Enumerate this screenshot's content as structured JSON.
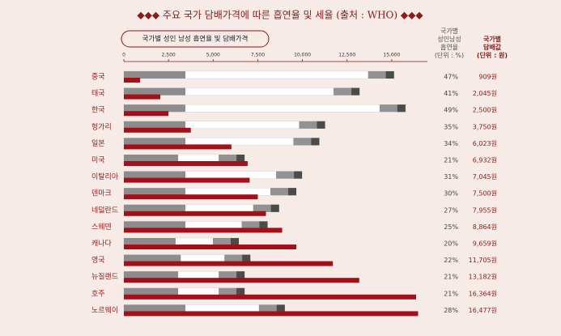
{
  "chart_data": {
    "type": "bar",
    "title": "◆◆◆ 주요 국가 담배가격에 따른 흡연율 및 세율 (출처 : WHO) ◆◆◆",
    "subtitle": "국가별 성인 남성 흡연율 및 담배가격",
    "categories": [
      "중국",
      "태국",
      "한국",
      "헝가리",
      "일본",
      "미국",
      "이탈리아",
      "덴마크",
      "네덜란드",
      "스웨덴",
      "캐나다",
      "영국",
      "뉴질랜드",
      "호주",
      "노르웨이"
    ],
    "series": [
      {
        "name": "국가별\n성인남성\n흡연율\n(단위 : %)",
        "color": "#ffffff",
        "values": [
          47,
          41,
          49,
          35,
          34,
          21,
          31,
          30,
          27,
          25,
          20,
          22,
          21,
          21,
          28
        ],
        "value_labels": [
          "47%",
          "41%",
          "49%",
          "35%",
          "34%",
          "21%",
          "31%",
          "30%",
          "27%",
          "25%",
          "20%",
          "22%",
          "21%",
          "21%",
          "28%"
        ]
      },
      {
        "name": "국가별\n담배값\n(단위 : 원)",
        "color": "#a3101a",
        "values": [
          909,
          2045,
          2500,
          3750,
          6023,
          6932,
          7045,
          7500,
          7955,
          8864,
          9659,
          11705,
          13182,
          16364,
          16477
        ],
        "value_labels": [
          "909원",
          "2,045원",
          "2,500원",
          "3,750원",
          "6,023원",
          "6,932원",
          "7,045원",
          "7,500원",
          "7,955원",
          "8,864원",
          "9,659원",
          "11,705원",
          "13,182원",
          "16,364원",
          "16,477원"
        ]
      }
    ],
    "xlim": [
      0,
      17000
    ],
    "xticks": [
      0,
      {
        "value": 2500,
        "label": "2,500"
      },
      {
        "value": 5000,
        "label": "5,000"
      },
      {
        "value": 7500,
        "label": "7,500"
      },
      {
        "value": 10000,
        "label": "10,000"
      },
      {
        "value": 12500,
        "label": "12,500"
      },
      {
        "value": 15000,
        "label": "15,000"
      }
    ]
  }
}
